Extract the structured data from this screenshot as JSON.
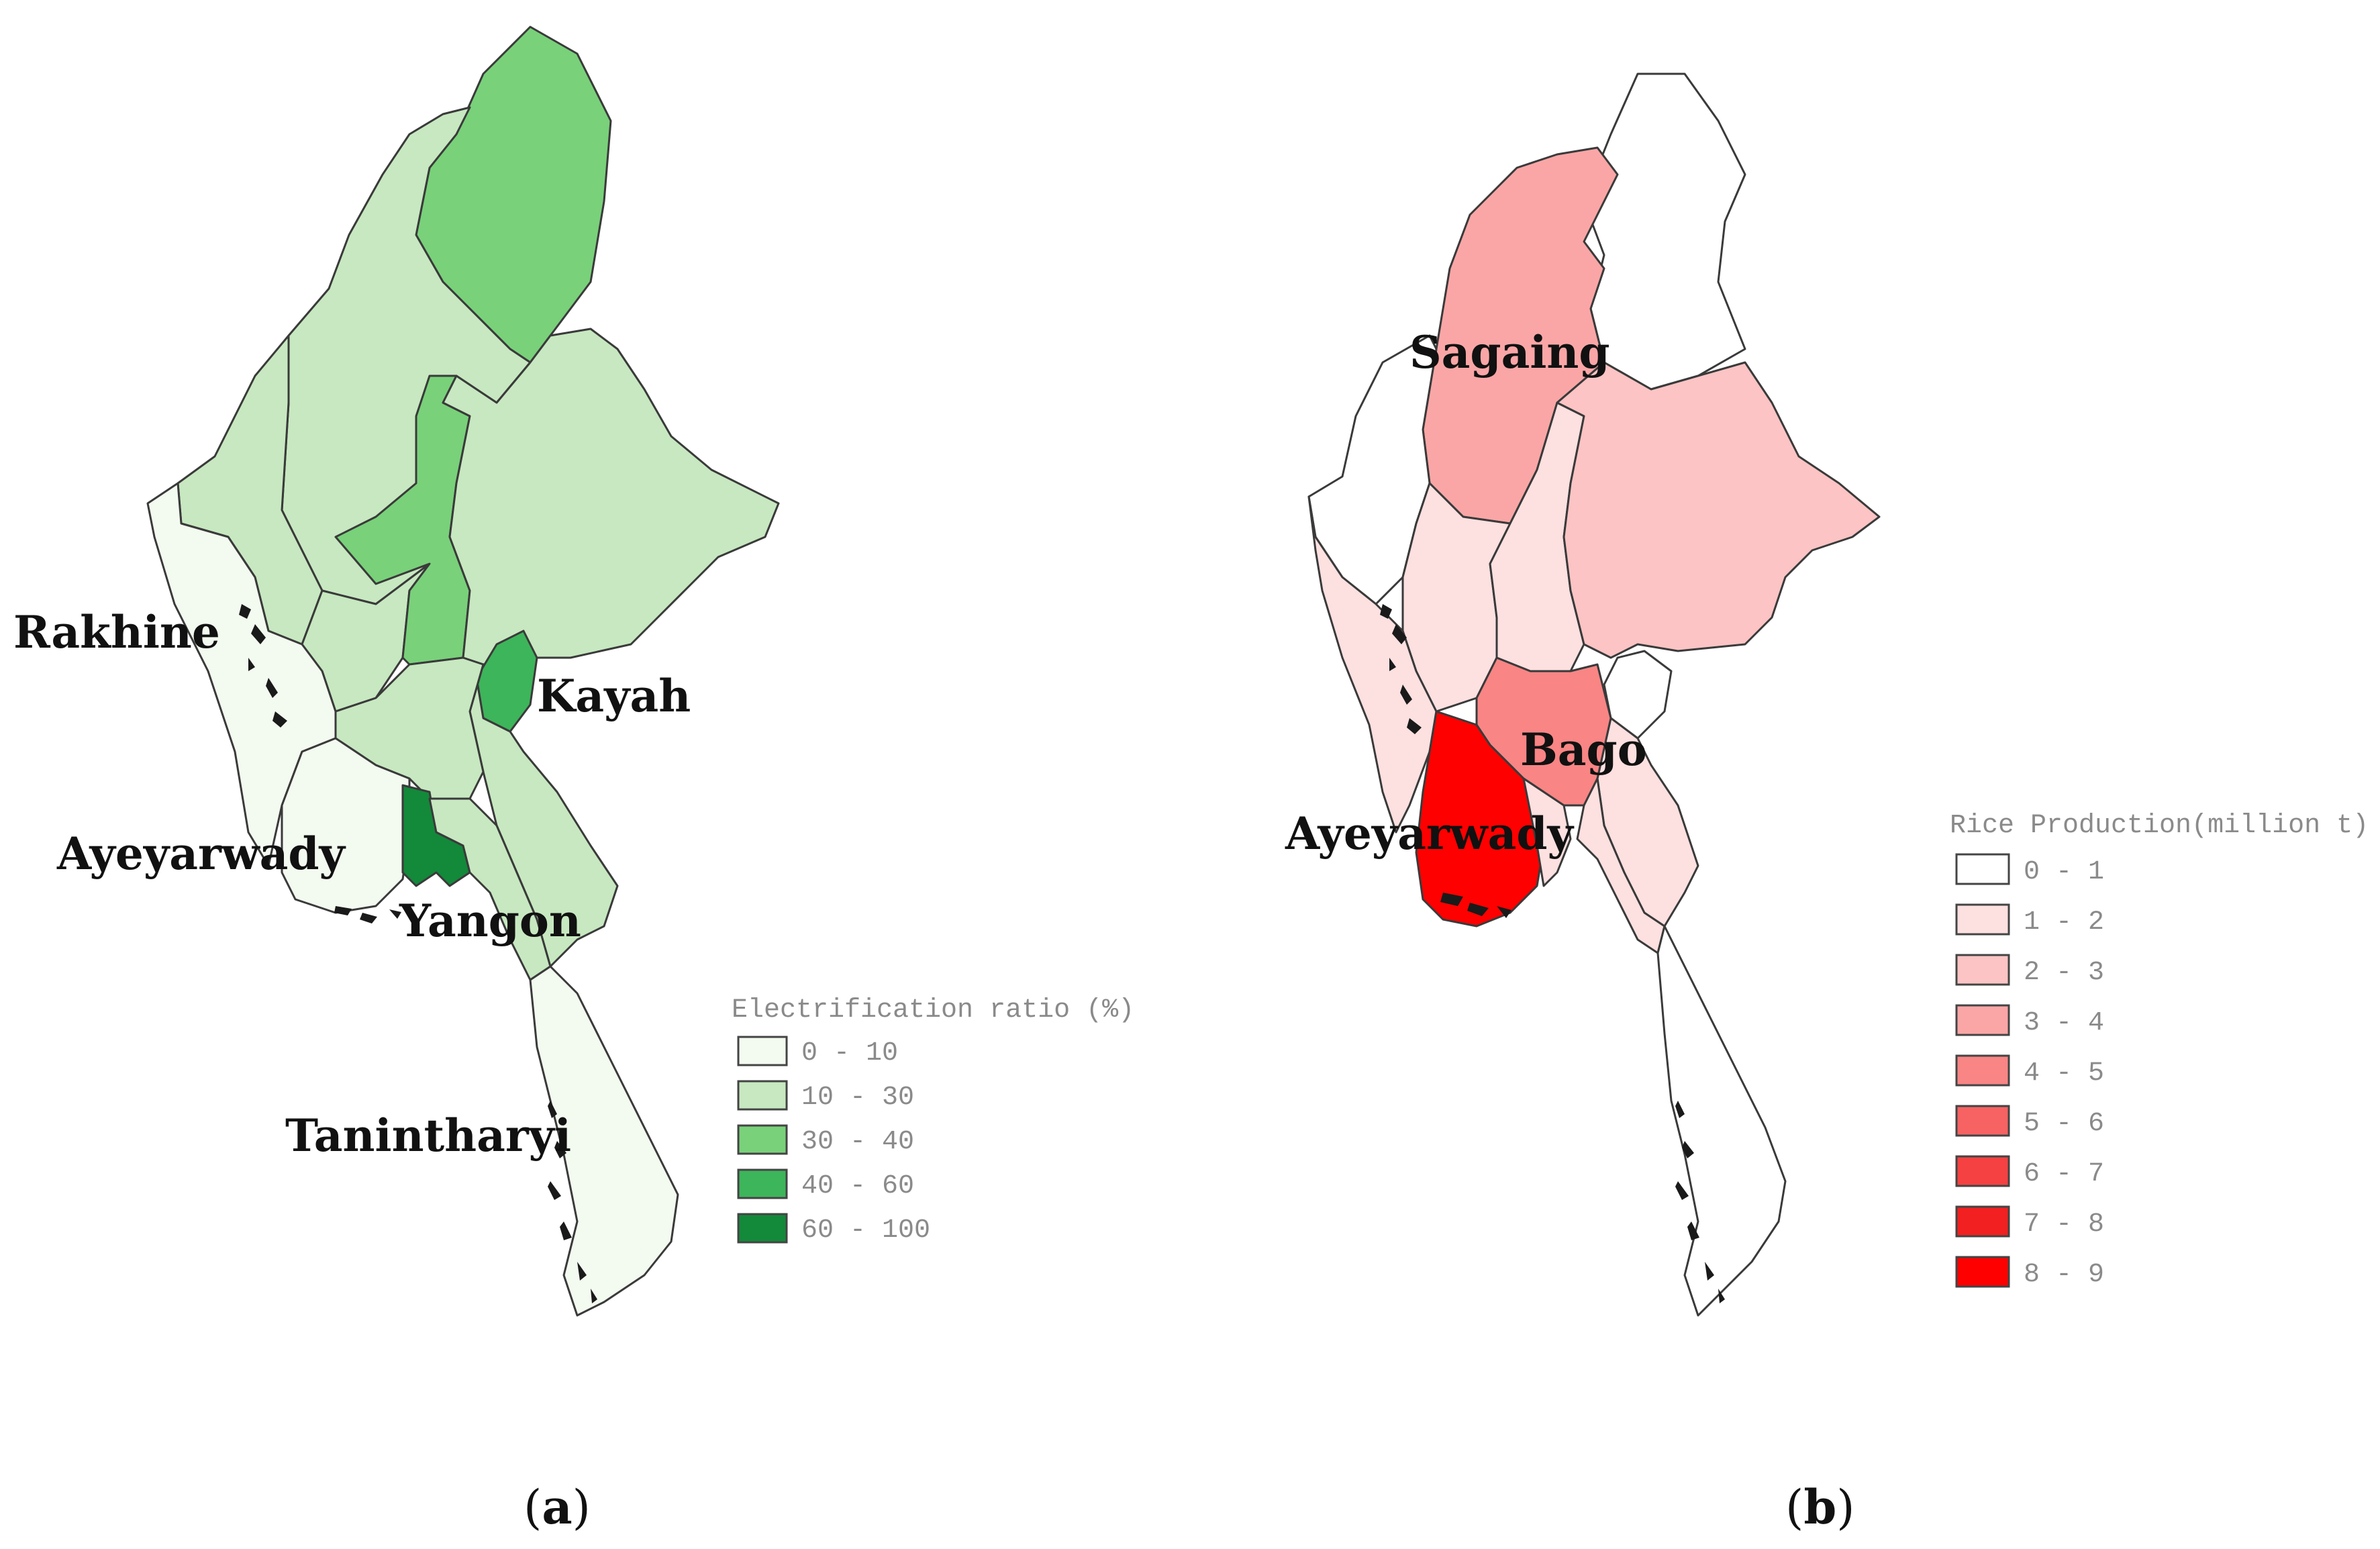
{
  "panels": [
    {
      "id": "a",
      "caption_open": "(",
      "caption_letter": "a",
      "caption_close": ")",
      "legend": {
        "title": "Electrification ratio (%)",
        "classes": [
          {
            "label": "0 - 10",
            "color": "#f3faf0"
          },
          {
            "label": "10 - 30",
            "color": "#c7e8c0"
          },
          {
            "label": "30 - 40",
            "color": "#79d17a"
          },
          {
            "label": "40 - 60",
            "color": "#3db55a"
          },
          {
            "label": "60 - 100",
            "color": "#13893a"
          }
        ]
      },
      "labels": [
        "Rakhine",
        "Kayah",
        "Ayeyarwady",
        "Yangon",
        "Tanintharyi"
      ]
    },
    {
      "id": "b",
      "caption_open": "(",
      "caption_letter": "b",
      "caption_close": ")",
      "legend": {
        "title": "Rice Production(million t)",
        "classes": [
          {
            "label": "0 - 1",
            "color": "#ffffff"
          },
          {
            "label": "1 - 2",
            "color": "#fde0e0"
          },
          {
            "label": "2 - 3",
            "color": "#fcc4c4"
          },
          {
            "label": "3 - 4",
            "color": "#fba6a6"
          },
          {
            "label": "4 - 5",
            "color": "#f98585"
          },
          {
            "label": "5 - 6",
            "color": "#f76262"
          },
          {
            "label": "6 - 7",
            "color": "#f54141"
          },
          {
            "label": "7 - 8",
            "color": "#f22020"
          },
          {
            "label": "8 - 9",
            "color": "#ff0000"
          }
        ]
      },
      "labels": [
        "Sagaing",
        "Bago",
        "Ayeyarwady"
      ]
    }
  ]
}
